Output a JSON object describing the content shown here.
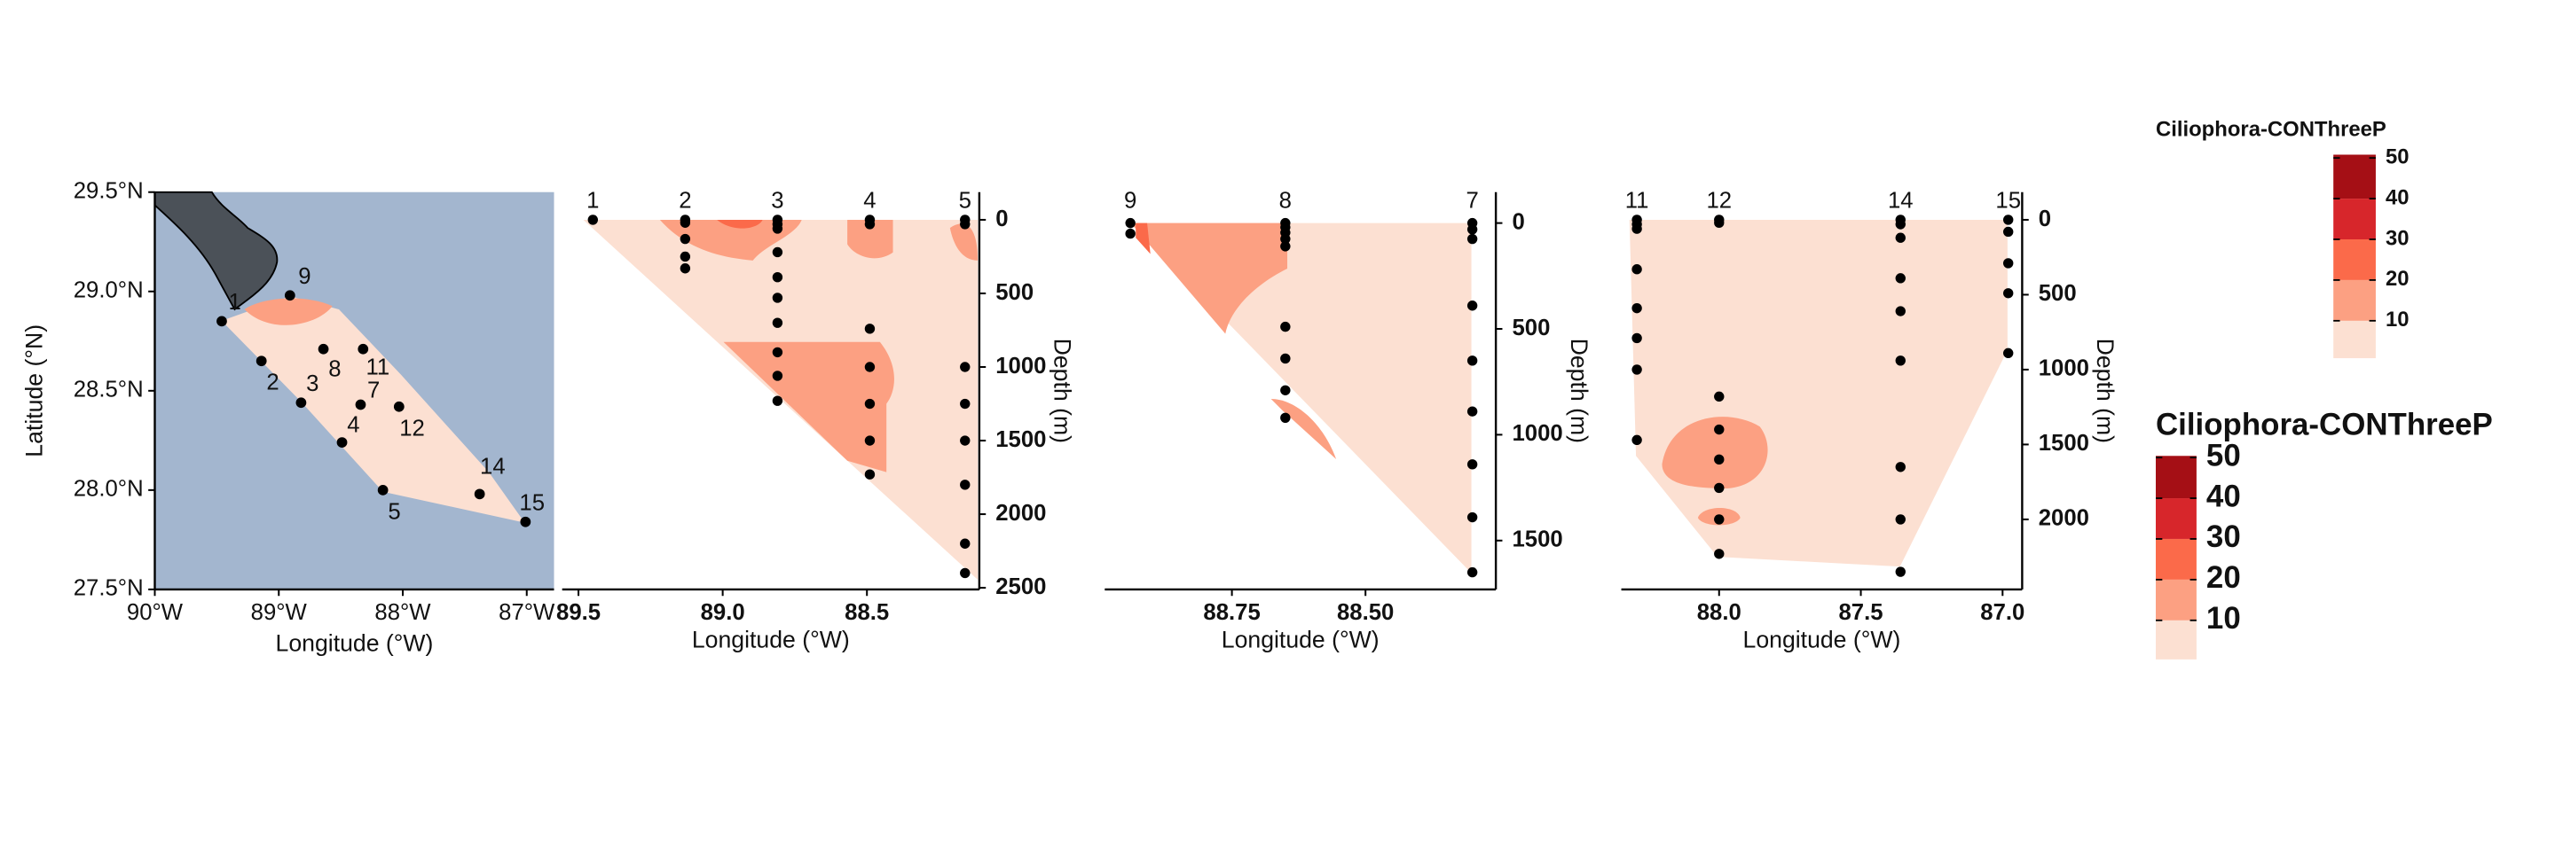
{
  "chart_data": [
    {
      "type": "map",
      "xlabel": "Longitude (°W)",
      "ylabel": "Latitude (°N)",
      "xlim": [
        -90,
        -86.78
      ],
      "ylim": [
        27.5,
        29.5
      ],
      "xticks": [
        {
          "value": -90,
          "label": "90°W"
        },
        {
          "value": -89,
          "label": "89°W"
        },
        {
          "value": -88,
          "label": "88°W"
        },
        {
          "value": -87,
          "label": "87°W"
        }
      ],
      "yticks": [
        {
          "value": 27.5,
          "label": "27.5°N"
        },
        {
          "value": 28.0,
          "label": "28.0°N"
        },
        {
          "value": 28.5,
          "label": "28.5°N"
        },
        {
          "value": 29.0,
          "label": "29.0°N"
        },
        {
          "value": 29.5,
          "label": "29.5°N"
        }
      ],
      "ocean_color": "#a3b6cf",
      "land_color": "#4b5158",
      "categories": [
        "1",
        "2",
        "3",
        "4",
        "5",
        "7",
        "8",
        "9",
        "11",
        "12",
        "14",
        "15"
      ],
      "x": [
        -89.46,
        -89.14,
        -88.82,
        -88.49,
        -88.16,
        -88.34,
        -88.64,
        -88.91,
        -88.32,
        -88.03,
        -87.38,
        -87.01
      ],
      "y": [
        28.85,
        28.65,
        28.44,
        28.24,
        28.0,
        28.43,
        28.71,
        28.98,
        28.71,
        28.42,
        27.98,
        27.84
      ]
    },
    {
      "type": "section",
      "xlabel": "Longitude (°W)",
      "ylabel": "Depth (m)",
      "xlim": [
        89.5,
        88.12
      ],
      "ylim": [
        0,
        2500
      ],
      "xticks": [
        89.5,
        {
          "value": 89.0,
          "label": "89.0"
        },
        88.5
      ],
      "yticks": [
        0,
        500,
        1000,
        1500,
        2000,
        2500
      ],
      "categories": [
        "1",
        "2",
        "3",
        "4",
        "5"
      ],
      "station_x": [
        89.45,
        89.13,
        88.81,
        88.49,
        88.16
      ],
      "depths": [
        [
          0
        ],
        [
          0,
          20,
          130,
          250,
          330
        ],
        [
          0,
          30,
          60,
          220,
          390,
          530,
          700,
          900,
          1060,
          1230
        ],
        [
          0,
          30,
          740,
          1000,
          1250,
          1500,
          1730
        ],
        [
          0,
          30,
          1000,
          1250,
          1500,
          1800,
          2200,
          2400
        ]
      ]
    },
    {
      "type": "section",
      "xlabel": "Longitude (°W)",
      "ylabel": "Depth (m)",
      "xlim": [
        88.98,
        88.26
      ],
      "ylim": [
        0,
        1700
      ],
      "xticks": [
        88.75,
        {
          "value": 88.5,
          "label": "88.50"
        }
      ],
      "yticks": [
        0,
        500,
        1000,
        1500
      ],
      "categories": [
        "9",
        "8",
        "7"
      ],
      "station_x": [
        88.94,
        88.65,
        88.3
      ],
      "depths": [
        [
          0,
          50
        ],
        [
          0,
          20,
          45,
          75,
          110,
          490,
          640,
          790,
          920
        ],
        [
          0,
          30,
          75,
          390,
          650,
          890,
          1140,
          1390,
          1650
        ]
      ]
    },
    {
      "type": "section",
      "xlabel": "Longitude (°W)",
      "ylabel": "Depth (m)",
      "xlim": [
        88.33,
        86.97
      ],
      "ylim": [
        0,
        2400
      ],
      "xticks": [
        {
          "value": 88.0,
          "label": "88.0"
        },
        87.5,
        {
          "value": 87.0,
          "label": "87.0"
        }
      ],
      "yticks": [
        0,
        500,
        1000,
        1500,
        2000
      ],
      "categories": [
        "11",
        "12",
        "14",
        "15"
      ],
      "station_x": [
        88.29,
        88.0,
        87.36,
        86.98
      ],
      "depths": [
        [
          0,
          30,
          60,
          330,
          590,
          790,
          1000,
          1470
        ],
        [
          0,
          20,
          1180,
          1400,
          1600,
          1790,
          2000,
          2230
        ],
        [
          0,
          30,
          120,
          390,
          610,
          940,
          1650,
          2000,
          2350
        ],
        [
          0,
          80,
          290,
          490,
          890
        ]
      ]
    },
    {
      "type": "colorbar",
      "title": "Ciliophora-CONThreeP",
      "lim": [
        0.8,
        50.8
      ],
      "ticks": [
        10,
        20,
        30,
        40,
        50
      ],
      "colors": [
        "#fce0d2",
        "#fca082",
        "#fb6a4a",
        "#d7262b",
        "#a50f15"
      ]
    },
    {
      "type": "colorbar",
      "title": "Ciliophora-CONThreeP",
      "lim": [
        0.4,
        50.4
      ],
      "ticks": [
        10,
        20,
        30,
        40,
        50
      ],
      "colors": [
        "#fce0d2",
        "#fca082",
        "#fb6a4a",
        "#d7262b",
        "#a50f15"
      ]
    }
  ]
}
